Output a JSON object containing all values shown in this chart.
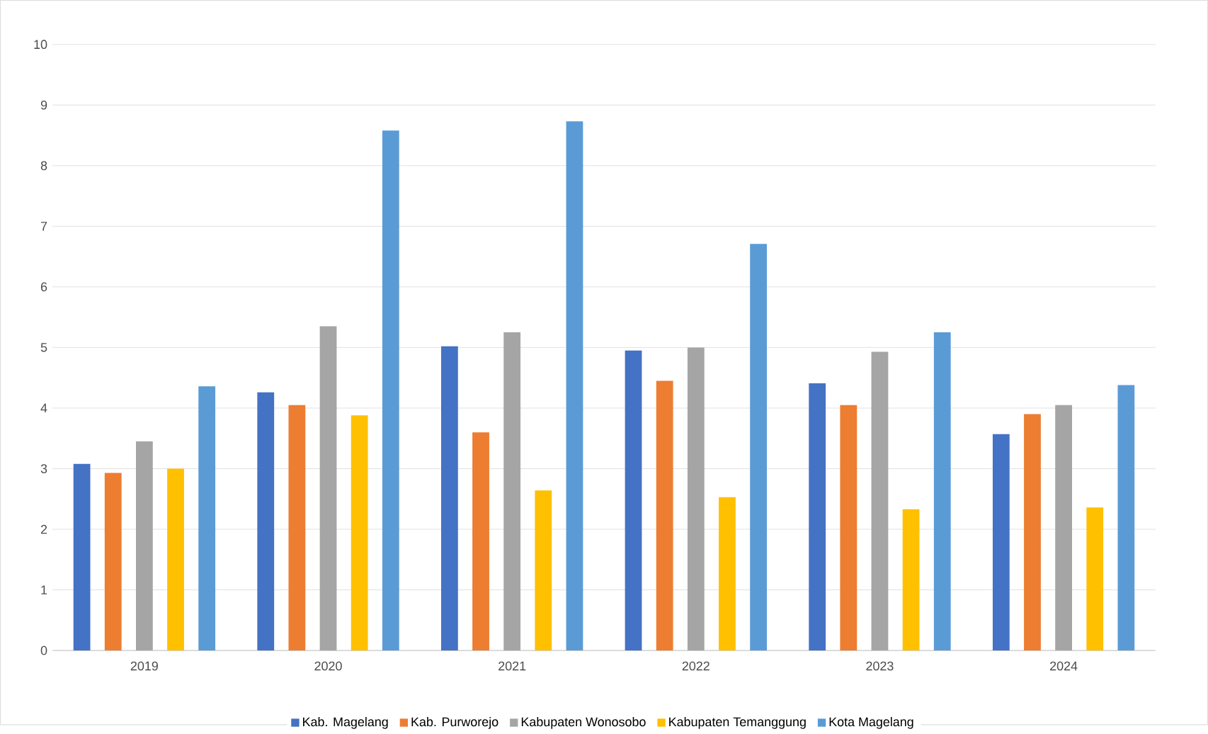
{
  "chart_data": {
    "type": "bar",
    "categories": [
      "2019",
      "2020",
      "2021",
      "2022",
      "2023",
      "2024"
    ],
    "series": [
      {
        "name": "Kab. Magelang",
        "color": "#4472c4",
        "values": [
          3.08,
          4.26,
          5.02,
          4.95,
          4.41,
          3.57
        ]
      },
      {
        "name": "Kab. Purworejo",
        "color": "#ed7d31",
        "values": [
          2.93,
          4.05,
          3.6,
          4.45,
          4.05,
          3.9
        ]
      },
      {
        "name": "Kabupaten Wonosobo",
        "color": "#a5a5a5",
        "values": [
          3.45,
          5.35,
          5.25,
          5.0,
          4.93,
          4.05
        ]
      },
      {
        "name": "Kabupaten Temanggung",
        "color": "#ffc000",
        "values": [
          3.0,
          3.88,
          2.64,
          2.53,
          2.33,
          2.36
        ]
      },
      {
        "name": "Kota Magelang",
        "color": "#5b9bd5",
        "values": [
          4.36,
          8.58,
          8.73,
          6.71,
          5.25,
          4.38
        ]
      }
    ],
    "ylim": [
      0,
      10
    ],
    "yticks": [
      0,
      1,
      2,
      3,
      4,
      5,
      6,
      7,
      8,
      9,
      10
    ],
    "grid": "y",
    "legend": "bottom"
  }
}
